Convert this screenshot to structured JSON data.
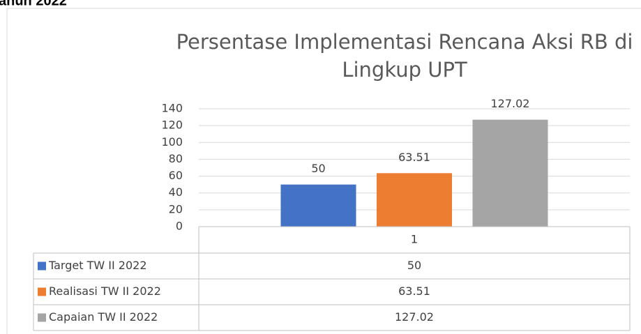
{
  "header": {
    "text": "ahun 2022"
  },
  "chart_data": {
    "type": "bar",
    "title": "Persentase Implementasi Rencana Aksi RB di Lingkup UPT",
    "categories": [
      "1"
    ],
    "series": [
      {
        "name": "Target TW II 2022",
        "color": "#4472c4",
        "values": [
          50
        ]
      },
      {
        "name": "Realisasi TW II 2022",
        "color": "#ed7d31",
        "values": [
          63.51
        ]
      },
      {
        "name": "Capaian TW II 2022",
        "color": "#a5a5a5",
        "values": [
          127.02
        ]
      }
    ],
    "ylim": [
      0,
      140
    ],
    "yticks": [
      0,
      20,
      40,
      60,
      80,
      100,
      120,
      140
    ],
    "grid": true,
    "data_table": true
  }
}
